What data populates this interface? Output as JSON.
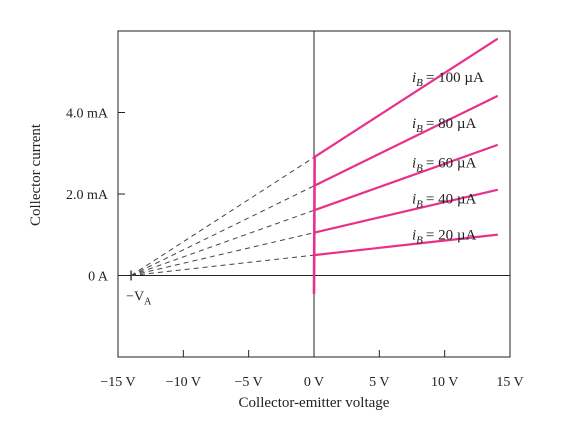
{
  "chart_data": {
    "type": "line",
    "title": "",
    "xlabel": "Collector-emitter voltage",
    "ylabel": "Collector current",
    "xlim": [
      -15,
      15
    ],
    "ylim": [
      -2,
      6
    ],
    "x_unit": "V",
    "y_unit": "mA",
    "x_ticks": [
      -15,
      -10,
      -5,
      0,
      5,
      10,
      15
    ],
    "x_tick_labels": [
      "−15 V",
      "−10 V",
      "−5 V",
      "0 V",
      "5 V",
      "10 V",
      "15 V"
    ],
    "y_ticks": [
      0,
      2,
      4
    ],
    "y_tick_labels": [
      "0 A",
      "2.0 mA",
      "4.0 mA"
    ],
    "early_voltage": -14,
    "early_voltage_label": "−V",
    "early_voltage_label_sub": "A",
    "grid": false,
    "colors": {
      "curves": "#e8318a",
      "extrapolation": "#444444",
      "axes": "#222222"
    },
    "saturation_segment": {
      "x": [
        0,
        0.05
      ],
      "y": [
        -0.45,
        2.9
      ]
    },
    "series": [
      {
        "name": "= 20 µA",
        "sym": "i",
        "sub": "B",
        "x": [
          0,
          14
        ],
        "y": [
          0.5,
          1.0
        ]
      },
      {
        "name": "= 40 µA",
        "sym": "i",
        "sub": "B",
        "x": [
          0,
          14
        ],
        "y": [
          1.05,
          2.1
        ]
      },
      {
        "name": "= 60 µA",
        "sym": "i",
        "sub": "B",
        "x": [
          0,
          14
        ],
        "y": [
          1.6,
          3.2
        ]
      },
      {
        "name": "= 80 µA",
        "sym": "i",
        "sub": "B",
        "x": [
          0,
          14
        ],
        "y": [
          2.2,
          4.4
        ]
      },
      {
        "name": "= 100 µA",
        "sym": "i",
        "sub": "B",
        "x": [
          0,
          14
        ],
        "y": [
          2.9,
          5.8
        ]
      }
    ]
  }
}
